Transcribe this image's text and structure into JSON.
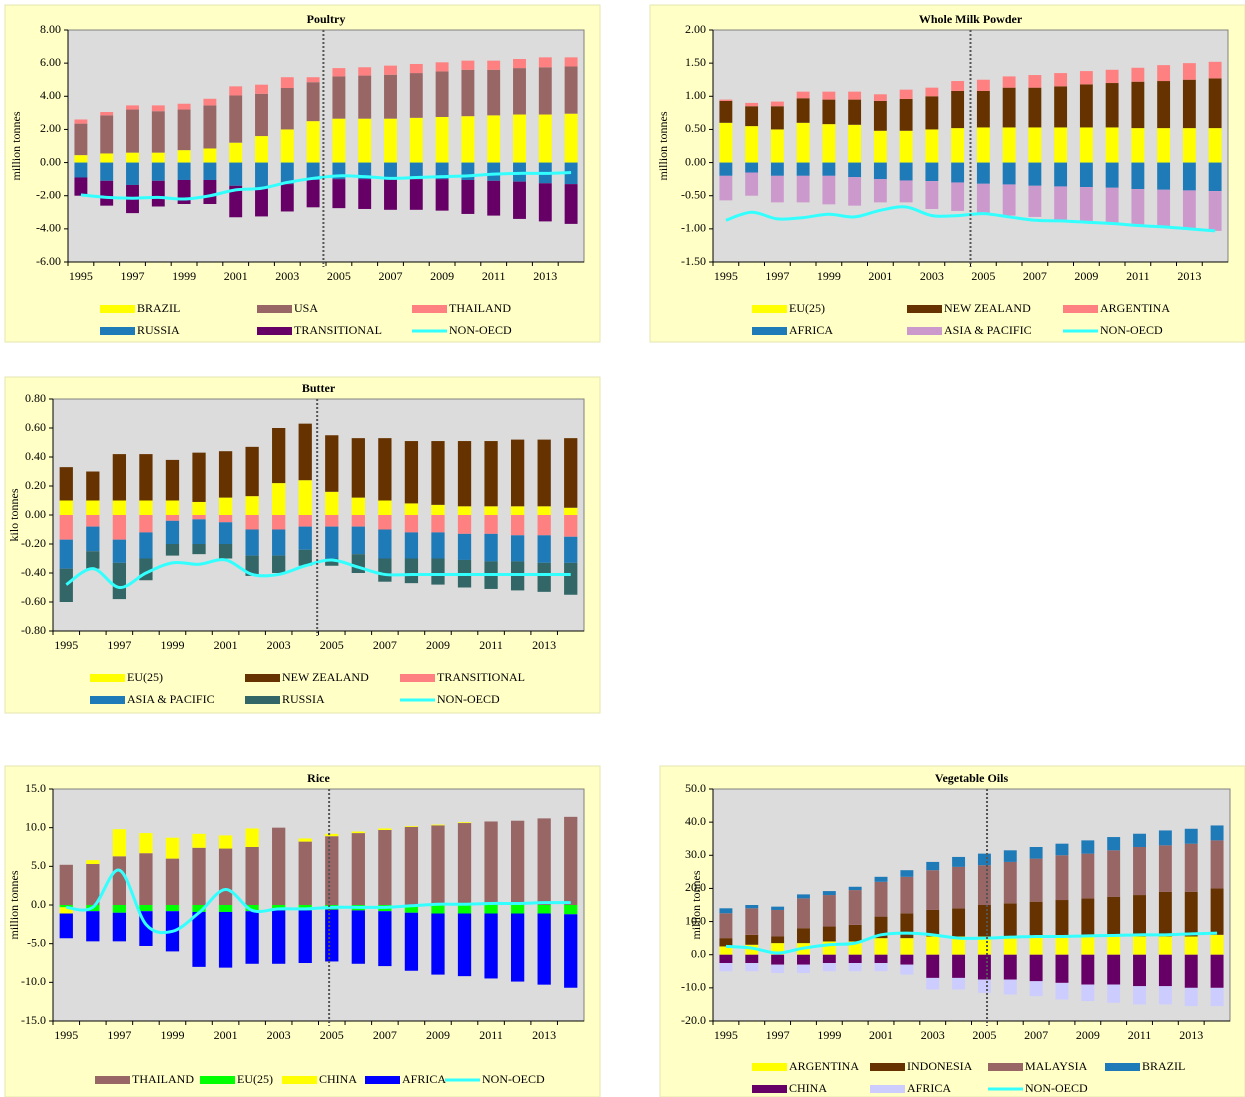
{
  "chart_data": [
    {
      "type": "stacked_bar",
      "title": "Poultry",
      "ylabel": "million tonnes",
      "categories": [
        "1995",
        null,
        "1997",
        null,
        "1999",
        null,
        "2001",
        null,
        "2003",
        null,
        "2005",
        null,
        "2007",
        null,
        "2009",
        null,
        "2011",
        null,
        "2013",
        null
      ],
      "ylim": [
        -6,
        8
      ],
      "yticks": [
        {
          "value": -6,
          "label": "-6.00"
        },
        {
          "value": -4,
          "label": "-4.00"
        },
        {
          "value": -2,
          "label": "-2.00"
        },
        {
          "value": 0,
          "label": "0.00"
        },
        {
          "value": 2,
          "label": "2.00"
        },
        {
          "value": 4,
          "label": "4.00"
        },
        {
          "value": 6,
          "label": "6.00"
        },
        {
          "value": 8,
          "label": "8.00"
        }
      ],
      "series": [
        {
          "name": "BRAZIL",
          "color": "#ffff00",
          "values": [
            0.45,
            0.55,
            0.6,
            0.6,
            0.75,
            0.85,
            1.2,
            1.6,
            2.0,
            2.5,
            2.65,
            2.65,
            2.65,
            2.7,
            2.75,
            2.8,
            2.85,
            2.9,
            2.9,
            2.95
          ]
        },
        {
          "name": "USA",
          "color": "#996666",
          "values": [
            1.9,
            2.3,
            2.6,
            2.5,
            2.45,
            2.6,
            2.85,
            2.55,
            2.5,
            2.35,
            2.55,
            2.6,
            2.65,
            2.7,
            2.75,
            2.8,
            2.75,
            2.8,
            2.85,
            2.85
          ]
        },
        {
          "name": "THAILAND",
          "color": "#ff8080",
          "values": [
            0.25,
            0.2,
            0.25,
            0.35,
            0.35,
            0.4,
            0.55,
            0.55,
            0.65,
            0.3,
            0.5,
            0.5,
            0.55,
            0.55,
            0.55,
            0.55,
            0.55,
            0.55,
            0.6,
            0.55
          ]
        },
        {
          "name": "RUSSIA",
          "color": "#1f7ab8",
          "values": [
            -0.9,
            -1.1,
            -1.35,
            -1.1,
            -1.05,
            -1.05,
            -1.4,
            -1.5,
            -1.3,
            -1.05,
            -1.0,
            -1.0,
            -1.0,
            -1.0,
            -1.0,
            -1.05,
            -1.1,
            -1.15,
            -1.25,
            -1.3
          ]
        },
        {
          "name": "TRANSITIONAL",
          "color": "#660066",
          "values": [
            -1.1,
            -1.5,
            -1.7,
            -1.55,
            -1.45,
            -1.45,
            -1.9,
            -1.75,
            -1.65,
            -1.65,
            -1.75,
            -1.8,
            -1.85,
            -1.85,
            -1.9,
            -2.05,
            -2.1,
            -2.25,
            -2.3,
            -2.4
          ]
        },
        {
          "name": "NON-OECD",
          "type": "line",
          "color": "#33ffff",
          "values": [
            -1.95,
            -2.1,
            -2.15,
            -2.1,
            -2.2,
            -2.0,
            -1.65,
            -1.55,
            -1.2,
            -0.95,
            -0.8,
            -0.85,
            -0.95,
            -0.9,
            -0.85,
            -0.8,
            -0.7,
            -0.65,
            -0.65,
            -0.6
          ]
        }
      ]
    },
    {
      "type": "stacked_bar",
      "title": "Whole Milk Powder",
      "ylabel": "million tonnes",
      "categories": [
        "1995",
        null,
        "1997",
        null,
        "1999",
        null,
        "2001",
        null,
        "2003",
        null,
        "2005",
        null,
        "2007",
        null,
        "2009",
        null,
        "2011",
        null,
        "2013",
        null
      ],
      "ylim": [
        -1.5,
        2
      ],
      "yticks": [
        {
          "value": -1.5,
          "label": "-1.50"
        },
        {
          "value": -1,
          "label": "-1.00"
        },
        {
          "value": -0.5,
          "label": "-0.50"
        },
        {
          "value": 0,
          "label": "0.00"
        },
        {
          "value": 0.5,
          "label": "0.50"
        },
        {
          "value": 1,
          "label": "1.00"
        },
        {
          "value": 1.5,
          "label": "1.50"
        },
        {
          "value": 2,
          "label": "2.00"
        }
      ],
      "series": [
        {
          "name": "EU(25)",
          "color": "#ffff00",
          "values": [
            0.6,
            0.55,
            0.5,
            0.6,
            0.58,
            0.57,
            0.48,
            0.48,
            0.5,
            0.52,
            0.53,
            0.53,
            0.53,
            0.53,
            0.53,
            0.53,
            0.52,
            0.52,
            0.52,
            0.52
          ]
        },
        {
          "name": "NEW ZEALAND",
          "color": "#663300",
          "values": [
            0.33,
            0.3,
            0.35,
            0.37,
            0.37,
            0.38,
            0.45,
            0.48,
            0.5,
            0.56,
            0.55,
            0.6,
            0.6,
            0.62,
            0.65,
            0.67,
            0.7,
            0.71,
            0.73,
            0.75
          ]
        },
        {
          "name": "ARGENTINA",
          "color": "#ff8080",
          "values": [
            0.02,
            0.05,
            0.07,
            0.1,
            0.12,
            0.12,
            0.1,
            0.14,
            0.13,
            0.15,
            0.17,
            0.17,
            0.19,
            0.2,
            0.2,
            0.2,
            0.21,
            0.24,
            0.25,
            0.25
          ]
        },
        {
          "name": "AFRICA",
          "color": "#1f7ab8",
          "values": [
            -0.2,
            -0.15,
            -0.2,
            -0.2,
            -0.2,
            -0.22,
            -0.25,
            -0.27,
            -0.28,
            -0.3,
            -0.32,
            -0.33,
            -0.35,
            -0.36,
            -0.37,
            -0.38,
            -0.4,
            -0.41,
            -0.42,
            -0.43
          ]
        },
        {
          "name": "ASIA & PACIFIC",
          "color": "#cc99cc",
          "values": [
            -0.37,
            -0.35,
            -0.4,
            -0.4,
            -0.43,
            -0.43,
            -0.35,
            -0.33,
            -0.42,
            -0.43,
            -0.46,
            -0.47,
            -0.47,
            -0.5,
            -0.51,
            -0.54,
            -0.55,
            -0.57,
            -0.58,
            -0.6
          ]
        },
        {
          "name": "NON-OECD",
          "type": "line",
          "color": "#33ffff",
          "values": [
            -0.87,
            -0.75,
            -0.85,
            -0.83,
            -0.78,
            -0.82,
            -0.72,
            -0.67,
            -0.8,
            -0.8,
            -0.77,
            -0.82,
            -0.87,
            -0.88,
            -0.9,
            -0.92,
            -0.95,
            -0.97,
            -1.0,
            -1.03
          ]
        }
      ]
    },
    {
      "type": "stacked_bar",
      "title": "Butter",
      "ylabel": "kilo tonnes",
      "categories": [
        "1995",
        null,
        "1997",
        null,
        "1999",
        null,
        "2001",
        null,
        "2003",
        null,
        "2005",
        null,
        "2007",
        null,
        "2009",
        null,
        "2011",
        null,
        "2013",
        null
      ],
      "ylim": [
        -0.8,
        0.8
      ],
      "yticks": [
        {
          "value": -0.8,
          "label": "-0.80"
        },
        {
          "value": -0.6,
          "label": "-0.60"
        },
        {
          "value": -0.4,
          "label": "-0.40"
        },
        {
          "value": -0.2,
          "label": "-0.20"
        },
        {
          "value": 0,
          "label": "0.00"
        },
        {
          "value": 0.2,
          "label": "0.20"
        },
        {
          "value": 0.4,
          "label": "0.40"
        },
        {
          "value": 0.6,
          "label": "0.60"
        },
        {
          "value": 0.8,
          "label": "0.80"
        }
      ],
      "series": [
        {
          "name": "EU(25)",
          "color": "#ffff00",
          "values": [
            0.1,
            0.1,
            0.1,
            0.1,
            0.1,
            0.09,
            0.12,
            0.13,
            0.22,
            0.24,
            0.16,
            0.12,
            0.1,
            0.08,
            0.07,
            0.06,
            0.06,
            0.06,
            0.06,
            0.05
          ]
        },
        {
          "name": "NEW ZEALAND",
          "color": "#663300",
          "values": [
            0.23,
            0.2,
            0.32,
            0.32,
            0.28,
            0.34,
            0.32,
            0.34,
            0.38,
            0.39,
            0.39,
            0.41,
            0.43,
            0.43,
            0.44,
            0.45,
            0.45,
            0.46,
            0.46,
            0.48
          ]
        },
        {
          "name": "TRANSITIONAL",
          "color": "#ff8080",
          "values": [
            -0.17,
            -0.08,
            -0.17,
            -0.12,
            -0.04,
            -0.03,
            -0.05,
            -0.1,
            -0.1,
            -0.08,
            -0.08,
            -0.08,
            -0.1,
            -0.12,
            -0.12,
            -0.13,
            -0.13,
            -0.14,
            -0.14,
            -0.15
          ]
        },
        {
          "name": "ASIA & PACIFIC",
          "color": "#1f7ab8",
          "values": [
            -0.2,
            -0.17,
            -0.16,
            -0.18,
            -0.16,
            -0.17,
            -0.15,
            -0.18,
            -0.18,
            -0.16,
            -0.22,
            -0.19,
            -0.2,
            -0.18,
            -0.18,
            -0.18,
            -0.19,
            -0.18,
            -0.19,
            -0.18
          ]
        },
        {
          "name": "RUSSIA",
          "color": "#336666",
          "values": [
            -0.23,
            -0.12,
            -0.25,
            -0.15,
            -0.08,
            -0.07,
            -0.1,
            -0.14,
            -0.12,
            -0.11,
            -0.05,
            -0.13,
            -0.16,
            -0.17,
            -0.18,
            -0.19,
            -0.19,
            -0.2,
            -0.2,
            -0.22
          ]
        },
        {
          "name": "NON-OECD",
          "type": "line",
          "color": "#33ffff",
          "values": [
            -0.48,
            -0.37,
            -0.5,
            -0.4,
            -0.33,
            -0.34,
            -0.31,
            -0.41,
            -0.41,
            -0.35,
            -0.31,
            -0.36,
            -0.41,
            -0.41,
            -0.41,
            -0.41,
            -0.41,
            -0.41,
            -0.41,
            -0.41
          ]
        }
      ]
    },
    {
      "type": "stacked_bar",
      "title": "Rice",
      "ylabel": "million tonnes",
      "categories": [
        "1995",
        null,
        "1997",
        null,
        "1999",
        null,
        "2001",
        null,
        "2003",
        null,
        "2005",
        null,
        "2007",
        null,
        "2009",
        null,
        "2011",
        null,
        "2013",
        null
      ],
      "ylim": [
        -15,
        15
      ],
      "yticks": [
        {
          "value": -15,
          "label": "-15.0"
        },
        {
          "value": -10,
          "label": "-10.0"
        },
        {
          "value": -5,
          "label": "-5.0"
        },
        {
          "value": 0,
          "label": "0.0"
        },
        {
          "value": 5,
          "label": "5.0"
        },
        {
          "value": 10,
          "label": "10.0"
        },
        {
          "value": 15,
          "label": "15.0"
        }
      ],
      "series": [
        {
          "name": "THAILAND",
          "color": "#996666",
          "values": [
            5.2,
            5.3,
            6.3,
            6.7,
            6.0,
            7.4,
            7.3,
            7.5,
            10.0,
            8.2,
            8.9,
            9.3,
            9.7,
            10.1,
            10.3,
            10.6,
            10.8,
            10.9,
            11.2,
            11.4
          ]
        },
        {
          "name": "EU(25)",
          "color": "#00ff00",
          "values": [
            -0.3,
            -0.8,
            -1.0,
            -0.8,
            -0.8,
            -0.9,
            -0.9,
            -0.8,
            -0.7,
            -0.7,
            -0.6,
            -0.7,
            -0.8,
            -1.0,
            -1.1,
            -1.1,
            -1.1,
            -1.1,
            -1.1,
            -1.2
          ]
        },
        {
          "name": "CHINA",
          "color": "#ffff00",
          "values": [
            -0.8,
            0.5,
            3.5,
            2.6,
            2.7,
            1.8,
            1.7,
            2.4,
            0,
            0.4,
            0.3,
            0.2,
            0.2,
            0.1,
            0.1,
            0.1,
            0,
            0,
            0,
            0
          ]
        },
        {
          "name": "AFRICA",
          "color": "#0000ff",
          "values": [
            -3.2,
            -3.9,
            -3.7,
            -4.5,
            -5.2,
            -7.1,
            -7.2,
            -6.8,
            -6.9,
            -6.8,
            -6.7,
            -6.9,
            -7.1,
            -7.5,
            -7.9,
            -8.1,
            -8.4,
            -8.8,
            -9.2,
            -9.5
          ]
        },
        {
          "name": "NON-OECD",
          "type": "line",
          "color": "#33ffff",
          "values": [
            -0.3,
            -0.3,
            4.5,
            -2.5,
            -3.4,
            -1.0,
            2.0,
            -0.7,
            -0.5,
            -0.5,
            -0.3,
            -0.3,
            -0.3,
            -0.1,
            0.1,
            0.1,
            0.2,
            0.2,
            0.3,
            0.3
          ]
        }
      ]
    },
    {
      "type": "stacked_bar",
      "title": "Vegetable Oils",
      "ylabel": "million tonnes",
      "categories": [
        "1995",
        null,
        "1997",
        null,
        "1999",
        null,
        "2001",
        null,
        "2003",
        null,
        "2005",
        null,
        "2007",
        null,
        "2009",
        null,
        "2011",
        null,
        "2013",
        null
      ],
      "ylim": [
        -20,
        50
      ],
      "yticks": [
        {
          "value": -20,
          "label": "-20.0"
        },
        {
          "value": -10,
          "label": "-10.0"
        },
        {
          "value": 0,
          "label": "0.0"
        },
        {
          "value": 10,
          "label": "10.0"
        },
        {
          "value": 20,
          "label": "20.0"
        },
        {
          "value": 30,
          "label": "30.0"
        },
        {
          "value": 40,
          "label": "40.0"
        },
        {
          "value": 50,
          "label": "50.0"
        }
      ],
      "series": [
        {
          "name": "ARGENTINA",
          "color": "#ffff00",
          "values": [
            2.5,
            3,
            3.5,
            3.5,
            4,
            4,
            5,
            5,
            5.5,
            5.5,
            5.5,
            5.5,
            5.5,
            5.5,
            5.5,
            5.5,
            5.5,
            5.5,
            5.5,
            6
          ]
        },
        {
          "name": "INDONESIA",
          "color": "#663300",
          "values": [
            2.5,
            3,
            2,
            4.5,
            4.5,
            5,
            6.5,
            7.5,
            8,
            8.5,
            9.5,
            10,
            10.5,
            11,
            11.5,
            12,
            12.5,
            13.5,
            13.5,
            14
          ]
        },
        {
          "name": "MALAYSIA",
          "color": "#996666",
          "values": [
            7.5,
            8,
            8,
            9,
            9.5,
            10.5,
            10.5,
            11,
            12,
            12.5,
            12,
            12.5,
            13,
            13.5,
            13.5,
            14,
            14.5,
            14,
            14.5,
            14.5
          ]
        },
        {
          "name": "BRAZIL",
          "color": "#1f7ab8",
          "values": [
            1.5,
            1,
            1,
            1.2,
            1.2,
            1,
            1.5,
            2,
            2.5,
            3,
            3.5,
            3.5,
            3.5,
            3.5,
            4,
            4,
            4,
            4.5,
            4.5,
            4.5
          ]
        },
        {
          "name": "CHINA",
          "color": "#660066",
          "values": [
            -2.5,
            -2.5,
            -3,
            -3,
            -2.5,
            -2.5,
            -2.5,
            -3,
            -7,
            -7,
            -7.5,
            -7.5,
            -8,
            -8.5,
            -9,
            -9,
            -9.5,
            -9.5,
            -10,
            -10
          ]
        },
        {
          "name": "AFRICA",
          "color": "#ccccff",
          "values": [
            -2.5,
            -2.5,
            -2.5,
            -2.5,
            -2.5,
            -2.5,
            -2.5,
            -3,
            -3.5,
            -3.5,
            -4,
            -4.5,
            -4.5,
            -5,
            -5,
            -5.5,
            -5.5,
            -5.5,
            -5.5,
            -5.5
          ]
        },
        {
          "name": "NON-OECD",
          "type": "line",
          "color": "#33ffff",
          "values": [
            2.5,
            2,
            0.5,
            2,
            3,
            3.5,
            6,
            6.5,
            6,
            5,
            5,
            5.3,
            5.5,
            5.5,
            5.7,
            5.8,
            6,
            6,
            6.3,
            6.5
          ]
        }
      ]
    }
  ]
}
